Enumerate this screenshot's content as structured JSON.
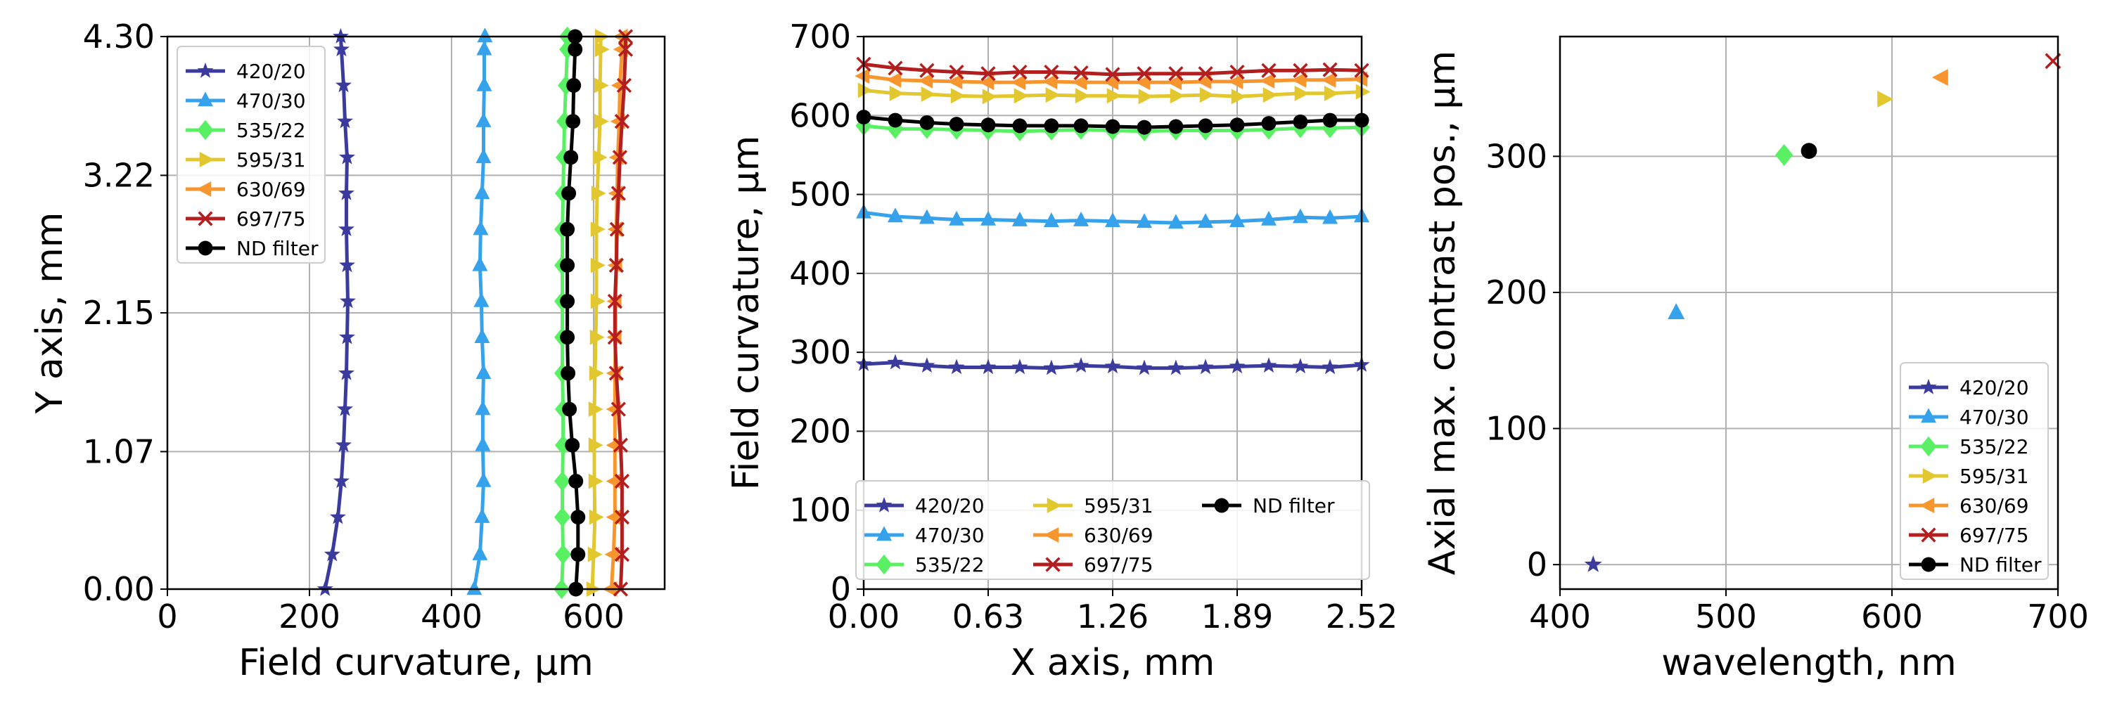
{
  "chart_data": [
    {
      "type": "line",
      "xlabel": "Field curvature, μm",
      "ylabel": "Y axis, mm",
      "xlim": [
        0,
        700
      ],
      "ylim": [
        0,
        4.3
      ],
      "xticks": [
        "0",
        "200",
        "400",
        "600"
      ],
      "yticks": [
        "0.00",
        "1.07",
        "2.15",
        "3.22",
        "4.30"
      ],
      "grid": true,
      "legend": {
        "placement": "upper-left",
        "columns": 1
      },
      "y": [
        0,
        0.27,
        0.56,
        0.84,
        1.12,
        1.4,
        1.68,
        1.96,
        2.24,
        2.52,
        2.8,
        3.08,
        3.36,
        3.64,
        3.92,
        4.2,
        4.3
      ],
      "series": [
        {
          "name": "420/20",
          "color": "#3b3b9e",
          "marker": "star",
          "values": [
            222,
            232,
            240,
            245,
            248,
            250,
            252,
            253,
            254,
            253,
            252,
            252,
            253,
            250,
            248,
            245,
            244
          ]
        },
        {
          "name": "470/30",
          "color": "#36a2eb",
          "marker": "triangle-up",
          "values": [
            432,
            440,
            443,
            445,
            444,
            444,
            445,
            443,
            442,
            440,
            441,
            443,
            445,
            445,
            446,
            446,
            447
          ]
        },
        {
          "name": "535/22",
          "color": "#59f063",
          "marker": "diamond",
          "values": [
            555,
            557,
            556,
            556,
            557,
            557,
            556,
            556,
            556,
            556,
            556,
            557,
            558,
            559,
            561,
            563,
            563
          ]
        },
        {
          "name": "595/31",
          "color": "#e3c72f",
          "marker": "triangle-right",
          "values": [
            598,
            600,
            602,
            601,
            601,
            601,
            602,
            603,
            604,
            604,
            604,
            605,
            607,
            609,
            609,
            610,
            610
          ]
        },
        {
          "name": "630/69",
          "color": "#f7952f",
          "marker": "triangle-left",
          "values": [
            625,
            628,
            630,
            630,
            630,
            630,
            630,
            631,
            631,
            632,
            632,
            633,
            634,
            636,
            637,
            640,
            640
          ]
        },
        {
          "name": "697/75",
          "color": "#b31e1e",
          "marker": "x",
          "values": [
            638,
            640,
            640,
            640,
            638,
            635,
            632,
            630,
            630,
            632,
            633,
            635,
            637,
            640,
            643,
            645,
            645
          ]
        },
        {
          "name": "ND filter",
          "color": "#000000",
          "marker": "circle",
          "values": [
            575,
            578,
            578,
            575,
            570,
            566,
            564,
            563,
            563,
            563,
            563,
            565,
            568,
            571,
            572,
            574,
            574
          ]
        }
      ]
    },
    {
      "type": "line",
      "xlabel": "X axis, mm",
      "ylabel": "Field curvature, μm",
      "xlim": [
        0,
        2.52
      ],
      "ylim": [
        0,
        700
      ],
      "xticks": [
        "0.00",
        "0.63",
        "1.26",
        "1.89",
        "2.52"
      ],
      "yticks": [
        "0",
        "100",
        "200",
        "300",
        "400",
        "500",
        "600",
        "700"
      ],
      "grid": true,
      "legend": {
        "placement": "lower-center",
        "columns": 3
      },
      "x": [
        0,
        0.16,
        0.32,
        0.47,
        0.63,
        0.79,
        0.95,
        1.1,
        1.26,
        1.42,
        1.58,
        1.73,
        1.89,
        2.05,
        2.21,
        2.36,
        2.52
      ],
      "series": [
        {
          "name": "420/20",
          "color": "#3b3b9e",
          "marker": "star",
          "values": [
            285,
            287,
            283,
            281,
            281,
            281,
            280,
            283,
            282,
            280,
            280,
            281,
            282,
            283,
            282,
            281,
            284
          ]
        },
        {
          "name": "470/30",
          "color": "#36a2eb",
          "marker": "triangle-up",
          "values": [
            477,
            472,
            470,
            468,
            468,
            467,
            466,
            467,
            466,
            465,
            464,
            465,
            466,
            468,
            471,
            470,
            472
          ]
        },
        {
          "name": "535/22",
          "color": "#59f063",
          "marker": "diamond",
          "values": [
            587,
            583,
            583,
            582,
            581,
            580,
            581,
            582,
            581,
            580,
            581,
            581,
            581,
            582,
            584,
            584,
            585
          ]
        },
        {
          "name": "595/31",
          "color": "#e3c72f",
          "marker": "triangle-right",
          "values": [
            632,
            628,
            627,
            625,
            624,
            625,
            626,
            625,
            625,
            624,
            625,
            626,
            624,
            626,
            628,
            628,
            630
          ]
        },
        {
          "name": "630/69",
          "color": "#f7952f",
          "marker": "triangle-left",
          "values": [
            650,
            645,
            644,
            643,
            642,
            642,
            643,
            642,
            642,
            642,
            642,
            643,
            643,
            644,
            645,
            645,
            646
          ]
        },
        {
          "name": "697/75",
          "color": "#b31e1e",
          "marker": "x",
          "values": [
            665,
            660,
            657,
            655,
            653,
            655,
            655,
            654,
            652,
            653,
            653,
            653,
            655,
            657,
            657,
            658,
            657
          ]
        },
        {
          "name": "ND filter",
          "color": "#000000",
          "marker": "circle",
          "values": [
            598,
            594,
            591,
            589,
            588,
            587,
            587,
            587,
            586,
            585,
            586,
            587,
            588,
            590,
            592,
            594,
            594
          ]
        }
      ]
    },
    {
      "type": "scatter",
      "xlabel": "wavelength, nm",
      "ylabel": "Axial max. contrast pos., μm",
      "xlim": [
        400,
        700
      ],
      "ylim": [
        -18,
        388
      ],
      "xticks": [
        "400",
        "500",
        "600",
        "700"
      ],
      "yticks": [
        "0",
        "100",
        "200",
        "300"
      ],
      "grid": true,
      "legend": {
        "placement": "lower-right",
        "columns": 1
      },
      "series": [
        {
          "name": "420/20",
          "color": "#3b3b9e",
          "marker": "star",
          "points": [
            [
              420,
              0
            ]
          ]
        },
        {
          "name": "470/30",
          "color": "#36a2eb",
          "marker": "triangle-up",
          "points": [
            [
              470,
              185
            ]
          ]
        },
        {
          "name": "535/22",
          "color": "#59f063",
          "marker": "diamond",
          "points": [
            [
              535,
              301
            ]
          ]
        },
        {
          "name": "595/31",
          "color": "#e3c72f",
          "marker": "triangle-right",
          "points": [
            [
              595,
              342
            ]
          ]
        },
        {
          "name": "630/69",
          "color": "#f7952f",
          "marker": "triangle-left",
          "points": [
            [
              630,
              358
            ]
          ]
        },
        {
          "name": "697/75",
          "color": "#b31e1e",
          "marker": "x",
          "points": [
            [
              697,
              370
            ]
          ]
        },
        {
          "name": "ND filter",
          "color": "#000000",
          "marker": "circle",
          "points": [
            [
              550,
              304
            ]
          ]
        }
      ]
    }
  ]
}
